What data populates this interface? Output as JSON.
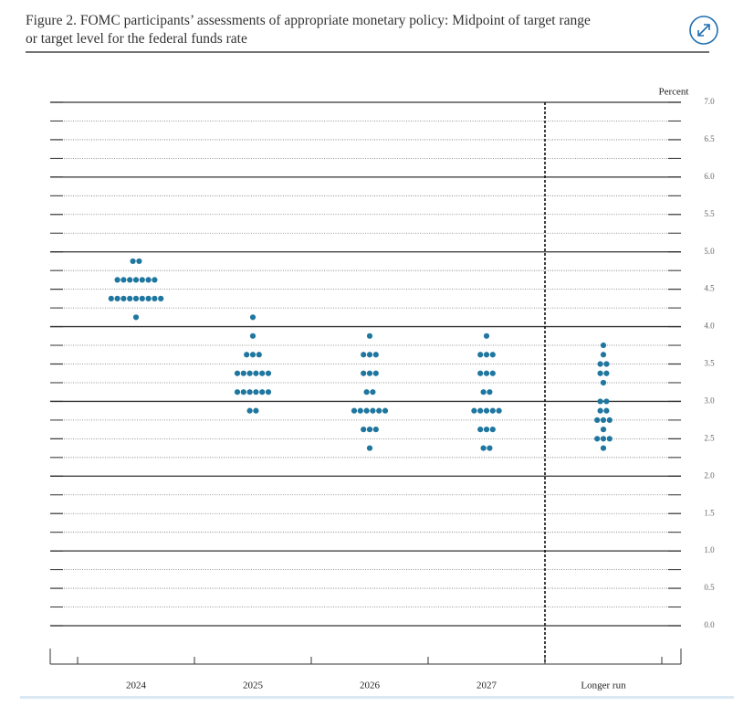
{
  "chart_data": {
    "type": "dot",
    "title": [
      "Figure 2.  FOMC participants’ assessments of appropriate monetary policy:  Midpoint of target range",
      "or target level for the federal funds rate"
    ],
    "ylabel": "Percent",
    "categories": [
      "2024",
      "2025",
      "2026",
      "2027",
      "Longer run"
    ],
    "color": "#1f77a0",
    "values": [
      [
        4.875,
        4.875,
        4.625,
        4.625,
        4.625,
        4.625,
        4.625,
        4.625,
        4.625,
        4.375,
        4.375,
        4.375,
        4.375,
        4.375,
        4.375,
        4.375,
        4.375,
        4.375,
        4.125
      ],
      [
        4.125,
        3.875,
        3.625,
        3.625,
        3.625,
        3.375,
        3.375,
        3.375,
        3.375,
        3.375,
        3.375,
        3.125,
        3.125,
        3.125,
        3.125,
        3.125,
        3.125,
        2.875,
        2.875
      ],
      [
        3.875,
        3.625,
        3.625,
        3.625,
        3.375,
        3.375,
        3.375,
        3.125,
        3.125,
        2.875,
        2.875,
        2.875,
        2.875,
        2.875,
        2.875,
        2.625,
        2.625,
        2.625,
        2.375
      ],
      [
        3.875,
        3.625,
        3.625,
        3.625,
        3.375,
        3.375,
        3.375,
        3.125,
        3.125,
        2.875,
        2.875,
        2.875,
        2.875,
        2.875,
        2.625,
        2.625,
        2.625,
        2.375,
        2.375
      ],
      [
        3.75,
        3.625,
        3.5,
        3.5,
        3.375,
        3.375,
        3.25,
        3.0,
        3.0,
        2.875,
        2.875,
        2.75,
        2.75,
        2.75,
        2.625,
        2.5,
        2.5,
        2.5,
        2.375
      ]
    ],
    "ylim": [
      0,
      7
    ],
    "yticks": [
      {
        "value": 0,
        "label": "0.0"
      },
      {
        "value": 0.5,
        "label": "0.5"
      },
      {
        "value": 1,
        "label": "1.0"
      },
      {
        "value": 1.5,
        "label": "1.5"
      },
      {
        "value": 2,
        "label": "2.0"
      },
      {
        "value": 2.5,
        "label": "2.5"
      },
      {
        "value": 3,
        "label": "3.0"
      },
      {
        "value": 3.5,
        "label": "3.5"
      },
      {
        "value": 4,
        "label": "4.0"
      },
      {
        "value": 4.5,
        "label": "4.5"
      },
      {
        "value": 5,
        "label": "5.0"
      },
      {
        "value": 5.5,
        "label": "5.5"
      },
      {
        "value": 6,
        "label": "6.0"
      },
      {
        "value": 6.5,
        "label": "6.5"
      },
      {
        "value": 7,
        "label": "7.0"
      }
    ],
    "grid": true
  }
}
